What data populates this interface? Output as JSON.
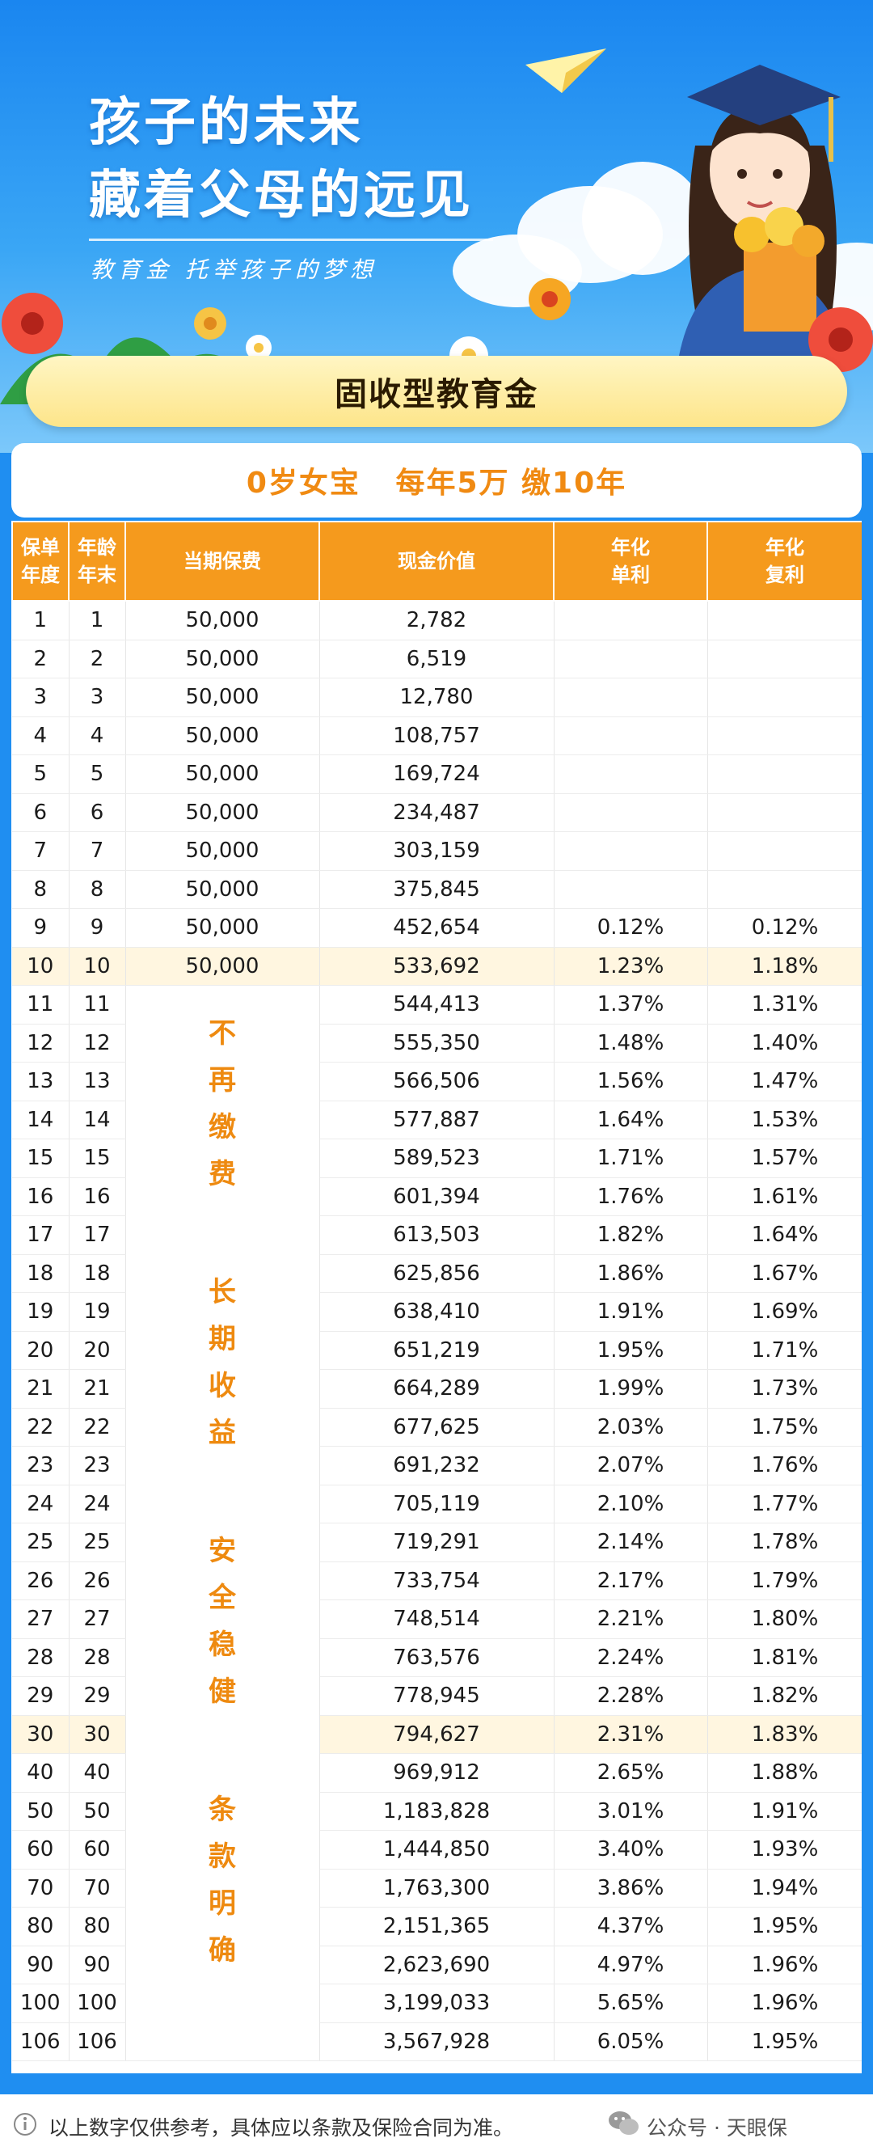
{
  "hero": {
    "title_line1": "孩子的未来",
    "title_line2": "藏着父母的远见",
    "slogan": "教育金 托举孩子的梦想"
  },
  "product_title": "固收型教育金",
  "subtitle": "0岁女宝   每年5万 缴10年",
  "table": {
    "headers": {
      "policy_year": [
        "保单",
        "年度"
      ],
      "age": [
        "年龄",
        "年末"
      ],
      "premium": "当期保费",
      "cash_value": "现金价值",
      "simple_rate": [
        "年化",
        "单利"
      ],
      "compound_rate": [
        "年化",
        "复利"
      ]
    },
    "merged_slogans": [
      [
        "不",
        "再",
        "缴",
        "费"
      ],
      [
        "长",
        "期",
        "收",
        "益"
      ],
      [
        "安",
        "全",
        "稳",
        "健"
      ],
      [
        "条",
        "款",
        "明",
        "确"
      ]
    ],
    "rows": [
      {
        "year": "1",
        "age": "1",
        "premium": "50,000",
        "cash": "2,782",
        "simple": "",
        "compound": ""
      },
      {
        "year": "2",
        "age": "2",
        "premium": "50,000",
        "cash": "6,519",
        "simple": "",
        "compound": ""
      },
      {
        "year": "3",
        "age": "3",
        "premium": "50,000",
        "cash": "12,780",
        "simple": "",
        "compound": ""
      },
      {
        "year": "4",
        "age": "4",
        "premium": "50,000",
        "cash": "108,757",
        "simple": "",
        "compound": ""
      },
      {
        "year": "5",
        "age": "5",
        "premium": "50,000",
        "cash": "169,724",
        "simple": "",
        "compound": ""
      },
      {
        "year": "6",
        "age": "6",
        "premium": "50,000",
        "cash": "234,487",
        "simple": "",
        "compound": ""
      },
      {
        "year": "7",
        "age": "7",
        "premium": "50,000",
        "cash": "303,159",
        "simple": "",
        "compound": ""
      },
      {
        "year": "8",
        "age": "8",
        "premium": "50,000",
        "cash": "375,845",
        "simple": "",
        "compound": ""
      },
      {
        "year": "9",
        "age": "9",
        "premium": "50,000",
        "cash": "452,654",
        "simple": "0.12%",
        "compound": "0.12%"
      },
      {
        "year": "10",
        "age": "10",
        "premium": "50,000",
        "cash": "533,692",
        "simple": "1.23%",
        "compound": "1.18%",
        "highlight": true
      },
      {
        "year": "11",
        "age": "11",
        "cash": "544,413",
        "simple": "1.37%",
        "compound": "1.31%"
      },
      {
        "year": "12",
        "age": "12",
        "cash": "555,350",
        "simple": "1.48%",
        "compound": "1.40%"
      },
      {
        "year": "13",
        "age": "13",
        "cash": "566,506",
        "simple": "1.56%",
        "compound": "1.47%"
      },
      {
        "year": "14",
        "age": "14",
        "cash": "577,887",
        "simple": "1.64%",
        "compound": "1.53%"
      },
      {
        "year": "15",
        "age": "15",
        "cash": "589,523",
        "simple": "1.71%",
        "compound": "1.57%"
      },
      {
        "year": "16",
        "age": "16",
        "cash": "601,394",
        "simple": "1.76%",
        "compound": "1.61%"
      },
      {
        "year": "17",
        "age": "17",
        "cash": "613,503",
        "simple": "1.82%",
        "compound": "1.64%"
      },
      {
        "year": "18",
        "age": "18",
        "cash": "625,856",
        "simple": "1.86%",
        "compound": "1.67%"
      },
      {
        "year": "19",
        "age": "19",
        "cash": "638,410",
        "simple": "1.91%",
        "compound": "1.69%"
      },
      {
        "year": "20",
        "age": "20",
        "cash": "651,219",
        "simple": "1.95%",
        "compound": "1.71%"
      },
      {
        "year": "21",
        "age": "21",
        "cash": "664,289",
        "simple": "1.99%",
        "compound": "1.73%"
      },
      {
        "year": "22",
        "age": "22",
        "cash": "677,625",
        "simple": "2.03%",
        "compound": "1.75%"
      },
      {
        "year": "23",
        "age": "23",
        "cash": "691,232",
        "simple": "2.07%",
        "compound": "1.76%"
      },
      {
        "year": "24",
        "age": "24",
        "cash": "705,119",
        "simple": "2.10%",
        "compound": "1.77%"
      },
      {
        "year": "25",
        "age": "25",
        "cash": "719,291",
        "simple": "2.14%",
        "compound": "1.78%"
      },
      {
        "year": "26",
        "age": "26",
        "cash": "733,754",
        "simple": "2.17%",
        "compound": "1.79%"
      },
      {
        "year": "27",
        "age": "27",
        "cash": "748,514",
        "simple": "2.21%",
        "compound": "1.80%"
      },
      {
        "year": "28",
        "age": "28",
        "cash": "763,576",
        "simple": "2.24%",
        "compound": "1.81%"
      },
      {
        "year": "29",
        "age": "29",
        "cash": "778,945",
        "simple": "2.28%",
        "compound": "1.82%"
      },
      {
        "year": "30",
        "age": "30",
        "cash": "794,627",
        "simple": "2.31%",
        "compound": "1.83%",
        "highlight": true
      },
      {
        "year": "40",
        "age": "40",
        "cash": "969,912",
        "simple": "2.65%",
        "compound": "1.88%"
      },
      {
        "year": "50",
        "age": "50",
        "cash": "1,183,828",
        "simple": "3.01%",
        "compound": "1.91%"
      },
      {
        "year": "60",
        "age": "60",
        "cash": "1,444,850",
        "simple": "3.40%",
        "compound": "1.93%"
      },
      {
        "year": "70",
        "age": "70",
        "cash": "1,763,300",
        "simple": "3.86%",
        "compound": "1.94%"
      },
      {
        "year": "80",
        "age": "80",
        "cash": "2,151,365",
        "simple": "4.37%",
        "compound": "1.95%"
      },
      {
        "year": "90",
        "age": "90",
        "cash": "2,623,690",
        "simple": "4.97%",
        "compound": "1.96%"
      },
      {
        "year": "100",
        "age": "100",
        "cash": "3,199,033",
        "simple": "5.65%",
        "compound": "1.96%"
      },
      {
        "year": "106",
        "age": "106",
        "cash": "3,567,928",
        "simple": "6.05%",
        "compound": "1.95%"
      }
    ]
  },
  "footer": {
    "note": "以上数字仅供参考，具体应以条款及保险合同为准。",
    "brand": "公众号 · 天眼保"
  },
  "colors": {
    "header_orange": "#f59a1d",
    "accent_orange": "#f08a12",
    "hero_blue": "#1a86f0",
    "highlight_row": "#fff6e0"
  },
  "icons": [
    "paper-plane-icon",
    "graduate-girl-illustration",
    "flower-decoration",
    "info-icon",
    "wechat-icon"
  ]
}
